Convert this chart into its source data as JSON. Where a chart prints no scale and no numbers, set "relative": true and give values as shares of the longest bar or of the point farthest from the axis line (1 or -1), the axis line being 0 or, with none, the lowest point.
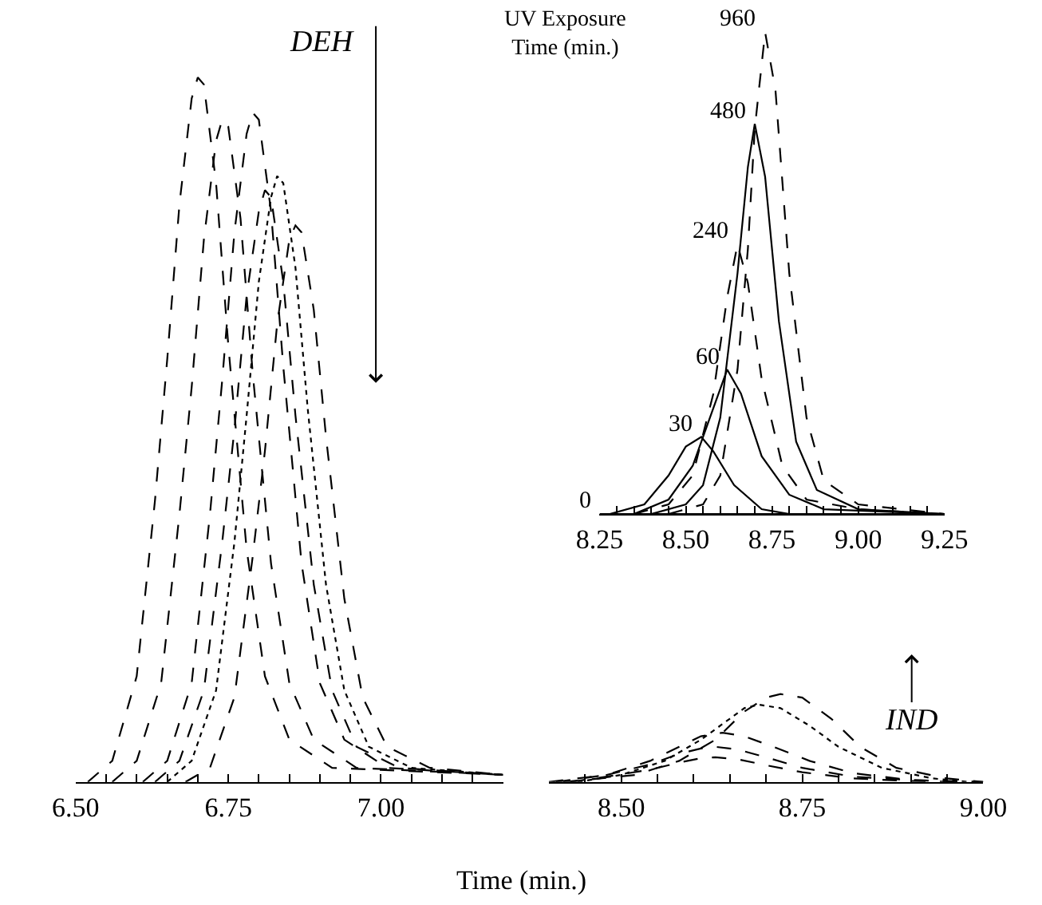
{
  "chart_data": [
    {
      "type": "line",
      "relative": true,
      "xlabel": "Time (min.)",
      "marker": "none",
      "xlim": [
        6.5,
        7.2
      ],
      "xticks": [
        {
          "value": 6.5,
          "label": "6.50"
        },
        {
          "value": 6.55,
          "label": null
        },
        {
          "value": 6.6,
          "label": null
        },
        {
          "value": 6.65,
          "label": null
        },
        {
          "value": 6.7,
          "label": null
        },
        {
          "value": 6.75,
          "label": "6.75"
        },
        {
          "value": 6.8,
          "label": null
        },
        {
          "value": 6.85,
          "label": null
        },
        {
          "value": 6.9,
          "label": null
        },
        {
          "value": 6.95,
          "label": null
        },
        {
          "value": 7.0,
          "label": "7.00"
        },
        {
          "value": 7.05,
          "label": null
        },
        {
          "value": 7.1,
          "label": null
        },
        {
          "value": 7.15,
          "label": null
        }
      ],
      "annotations": [
        "DEH"
      ],
      "series": [
        {
          "color": "#000000",
          "line_style": "dashed",
          "x": [
            6.52,
            6.56,
            6.6,
            6.63,
            6.65,
            6.67,
            6.69,
            6.7,
            6.71,
            6.73,
            6.75,
            6.78,
            6.81,
            6.85,
            6.92,
            7.2
          ],
          "values": [
            0,
            0.03,
            0.15,
            0.4,
            0.6,
            0.82,
            0.97,
            1.0,
            0.99,
            0.85,
            0.62,
            0.33,
            0.15,
            0.06,
            0.02,
            0.01
          ]
        },
        {
          "color": "#000000",
          "line_style": "dashed",
          "x": [
            6.56,
            6.6,
            6.64,
            6.67,
            6.69,
            6.71,
            6.73,
            6.74,
            6.75,
            6.77,
            6.79,
            6.82,
            6.85,
            6.89,
            6.96,
            7.2
          ],
          "values": [
            0,
            0.03,
            0.14,
            0.38,
            0.56,
            0.77,
            0.91,
            0.94,
            0.93,
            0.8,
            0.58,
            0.31,
            0.14,
            0.06,
            0.02,
            0.01
          ]
        },
        {
          "color": "#000000",
          "line_style": "dashed",
          "x": [
            6.61,
            6.65,
            6.69,
            6.72,
            6.74,
            6.76,
            6.78,
            6.79,
            6.8,
            6.82,
            6.84,
            6.87,
            6.9,
            6.94,
            7.01,
            7.2
          ],
          "values": [
            0,
            0.03,
            0.14,
            0.38,
            0.57,
            0.78,
            0.92,
            0.95,
            0.94,
            0.81,
            0.59,
            0.31,
            0.14,
            0.06,
            0.02,
            0.01
          ]
        },
        {
          "color": "#000000",
          "line_style": "dashed",
          "x": [
            6.63,
            6.67,
            6.71,
            6.74,
            6.76,
            6.78,
            6.8,
            6.81,
            6.82,
            6.84,
            6.86,
            6.89,
            6.92,
            6.96,
            7.03,
            7.2
          ],
          "values": [
            0,
            0.03,
            0.13,
            0.34,
            0.5,
            0.69,
            0.81,
            0.84,
            0.83,
            0.71,
            0.52,
            0.28,
            0.13,
            0.05,
            0.02,
            0.01
          ]
        },
        {
          "color": "#000000",
          "line_style": "dotted",
          "x": [
            6.65,
            6.69,
            6.73,
            6.76,
            6.78,
            6.8,
            6.82,
            6.83,
            6.84,
            6.86,
            6.88,
            6.91,
            6.94,
            6.98,
            7.05,
            7.2
          ],
          "values": [
            0,
            0.03,
            0.13,
            0.34,
            0.52,
            0.71,
            0.83,
            0.86,
            0.85,
            0.73,
            0.53,
            0.28,
            0.13,
            0.05,
            0.02,
            0.01
          ]
        },
        {
          "color": "#000000",
          "line_style": "dashed",
          "x": [
            6.68,
            6.72,
            6.76,
            6.79,
            6.81,
            6.83,
            6.85,
            6.86,
            6.87,
            6.89,
            6.91,
            6.94,
            6.97,
            7.01,
            7.08,
            7.2
          ],
          "values": [
            0,
            0.02,
            0.12,
            0.32,
            0.47,
            0.65,
            0.77,
            0.79,
            0.78,
            0.67,
            0.49,
            0.26,
            0.12,
            0.05,
            0.02,
            0.01
          ]
        }
      ]
    },
    {
      "type": "line",
      "relative": true,
      "marker": "none",
      "xlim": [
        8.4,
        9.0
      ],
      "xticks": [
        {
          "value": 8.45,
          "label": null
        },
        {
          "value": 8.5,
          "label": "8.50"
        },
        {
          "value": 8.55,
          "label": null
        },
        {
          "value": 8.6,
          "label": null
        },
        {
          "value": 8.65,
          "label": null
        },
        {
          "value": 8.7,
          "label": null
        },
        {
          "value": 8.75,
          "label": "8.75"
        },
        {
          "value": 8.8,
          "label": null
        },
        {
          "value": 8.85,
          "label": null
        },
        {
          "value": 8.9,
          "label": null
        },
        {
          "value": 8.95,
          "label": null
        },
        {
          "value": 9.0,
          "label": "9.00"
        }
      ],
      "annotations": [
        "IND"
      ],
      "series": [
        {
          "color": "#000000",
          "line_style": "dashed",
          "x": [
            8.43,
            8.48,
            8.54,
            8.58,
            8.61,
            8.63,
            8.66,
            8.7,
            8.75,
            8.82,
            8.9,
            8.97
          ],
          "values": [
            0,
            0.06,
            0.14,
            0.22,
            0.27,
            0.28,
            0.26,
            0.19,
            0.11,
            0.04,
            0.01,
            0
          ]
        },
        {
          "color": "#000000",
          "line_style": "dashed",
          "x": [
            8.4,
            8.48,
            8.54,
            8.58,
            8.61,
            8.63,
            8.66,
            8.7,
            8.75,
            8.82,
            8.9,
            9.0
          ],
          "values": [
            0,
            0.08,
            0.2,
            0.32,
            0.38,
            0.4,
            0.37,
            0.28,
            0.16,
            0.06,
            0.02,
            0
          ]
        },
        {
          "color": "#000000",
          "line_style": "dashed",
          "x": [
            8.41,
            8.48,
            8.54,
            8.58,
            8.61,
            8.64,
            8.67,
            8.71,
            8.76,
            8.82,
            8.9,
            8.99
          ],
          "values": [
            0,
            0.08,
            0.24,
            0.4,
            0.52,
            0.56,
            0.52,
            0.4,
            0.24,
            0.1,
            0.02,
            0
          ]
        },
        {
          "color": "#000000",
          "line_style": "dotted",
          "x": [
            8.44,
            8.5,
            8.56,
            8.61,
            8.65,
            8.67,
            8.69,
            8.72,
            8.76,
            8.8,
            8.86,
            8.93,
            8.98
          ],
          "values": [
            0,
            0.08,
            0.24,
            0.48,
            0.72,
            0.84,
            0.88,
            0.84,
            0.64,
            0.4,
            0.16,
            0.04,
            0
          ]
        },
        {
          "color": "#000000",
          "line_style": "dashed",
          "x": [
            8.42,
            8.52,
            8.58,
            8.63,
            8.67,
            8.7,
            8.72,
            8.75,
            8.79,
            8.83,
            8.88,
            8.95,
            9.0
          ],
          "values": [
            0,
            0.08,
            0.24,
            0.48,
            0.8,
            0.96,
            1.0,
            0.96,
            0.72,
            0.4,
            0.16,
            0.04,
            0
          ]
        }
      ]
    },
    {
      "type": "line",
      "relative": true,
      "title": "UV Exposure\nTime (min.)",
      "marker": "none",
      "xlim": [
        8.25,
        9.25
      ],
      "xticks": [
        {
          "value": 8.25,
          "label": "8.25"
        },
        {
          "value": 8.3,
          "label": null
        },
        {
          "value": 8.35,
          "label": null
        },
        {
          "value": 8.4,
          "label": null
        },
        {
          "value": 8.45,
          "label": null
        },
        {
          "value": 8.5,
          "label": "8.50"
        },
        {
          "value": 8.55,
          "label": null
        },
        {
          "value": 8.6,
          "label": null
        },
        {
          "value": 8.65,
          "label": null
        },
        {
          "value": 8.7,
          "label": null
        },
        {
          "value": 8.75,
          "label": "8.75"
        },
        {
          "value": 8.8,
          "label": null
        },
        {
          "value": 8.85,
          "label": null
        },
        {
          "value": 8.9,
          "label": null
        },
        {
          "value": 8.95,
          "label": null
        },
        {
          "value": 9.0,
          "label": "9.00"
        },
        {
          "value": 9.05,
          "label": null
        },
        {
          "value": 9.1,
          "label": null
        },
        {
          "value": 9.15,
          "label": null
        },
        {
          "value": 9.2,
          "label": null
        },
        {
          "value": 9.25,
          "label": "9.25"
        }
      ],
      "series": [
        {
          "name": "0",
          "color": "#000000",
          "line_style": "solid",
          "x": [
            8.25,
            9.25
          ],
          "values": [
            0,
            0
          ]
        },
        {
          "name": "30",
          "color": "#000000",
          "line_style": "solid",
          "x": [
            8.28,
            8.38,
            8.45,
            8.5,
            8.545,
            8.58,
            8.64,
            8.72,
            8.8,
            9.25
          ],
          "values": [
            0,
            0.02,
            0.08,
            0.14,
            0.16,
            0.13,
            0.06,
            0.01,
            0,
            0
          ]
        },
        {
          "name": "60",
          "color": "#000000",
          "line_style": "solid",
          "x": [
            8.35,
            8.45,
            8.52,
            8.57,
            8.62,
            8.66,
            8.72,
            8.8,
            8.9,
            9.25
          ],
          "values": [
            0,
            0.03,
            0.1,
            0.2,
            0.3,
            0.25,
            0.12,
            0.04,
            0.01,
            0
          ]
        },
        {
          "name": "240",
          "color": "#000000",
          "line_style": "dashed",
          "x": [
            8.35,
            8.45,
            8.52,
            8.58,
            8.62,
            8.65,
            8.68,
            8.72,
            8.78,
            8.85,
            9.0,
            9.25
          ],
          "values": [
            0,
            0.02,
            0.08,
            0.25,
            0.45,
            0.56,
            0.48,
            0.28,
            0.1,
            0.03,
            0.01,
            0
          ]
        },
        {
          "name": "480",
          "color": "#000000",
          "line_style": "solid",
          "x": [
            8.4,
            8.5,
            8.55,
            8.6,
            8.65,
            8.68,
            8.7,
            8.73,
            8.77,
            8.82,
            8.88,
            9.0,
            9.25
          ],
          "values": [
            0,
            0.02,
            0.06,
            0.2,
            0.5,
            0.72,
            0.81,
            0.7,
            0.4,
            0.15,
            0.05,
            0.01,
            0
          ]
        },
        {
          "name": "960",
          "color": "#000000",
          "line_style": "dashed",
          "x": [
            8.45,
            8.55,
            8.6,
            8.65,
            8.68,
            8.7,
            8.73,
            8.76,
            8.8,
            8.85,
            8.9,
            9.0,
            9.25
          ],
          "values": [
            0,
            0.02,
            0.08,
            0.3,
            0.55,
            0.8,
            1.0,
            0.88,
            0.5,
            0.2,
            0.07,
            0.02,
            0
          ]
        }
      ]
    }
  ]
}
